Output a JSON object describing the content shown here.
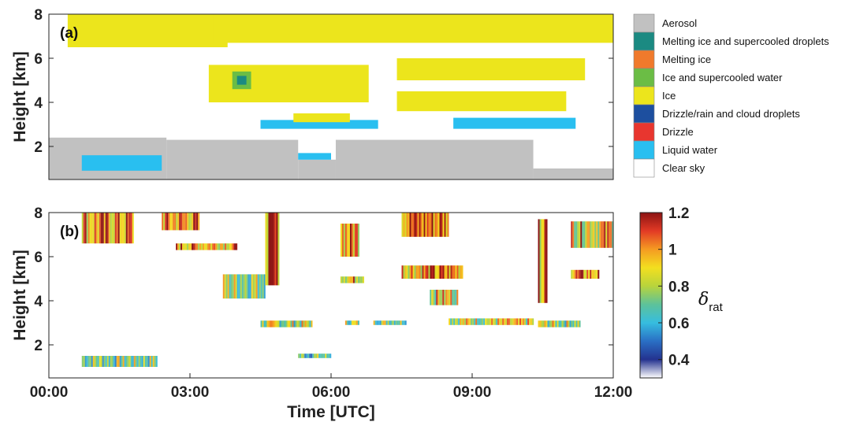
{
  "chart_data": [
    {
      "type": "heatmap",
      "panel_label": "(a)",
      "ylabel": "Height [km]",
      "xlabel": "",
      "xlim": [
        0,
        12
      ],
      "ylim": [
        0.5,
        8
      ],
      "yticks": [
        {
          "value": 2,
          "label": "2"
        },
        {
          "value": 4,
          "label": "4"
        },
        {
          "value": 6,
          "label": "6"
        },
        {
          "value": 8,
          "label": "8"
        }
      ],
      "legend_placement": "right",
      "legend": [
        {
          "label": "Aerosol",
          "color": "#c1c1c1"
        },
        {
          "label": "Melting ice and supercooled droplets",
          "color": "#1b8a82"
        },
        {
          "label": "Melting ice",
          "color": "#f07a2c"
        },
        {
          "label": "Ice and supercooled water",
          "color": "#6bbd45"
        },
        {
          "label": "Ice",
          "color": "#ece51c"
        },
        {
          "label": "Drizzle/rain and cloud droplets",
          "color": "#1d4f9f"
        },
        {
          "label": "Drizzle",
          "color": "#e8362f"
        },
        {
          "label": "Liquid water",
          "color": "#29bff0"
        },
        {
          "label": "Clear sky",
          "color": "#ffffff"
        }
      ],
      "regions": [
        {
          "class": "Aerosol",
          "color": "#c1c1c1",
          "t0": 0.0,
          "t1": 2.5,
          "h0": 0.5,
          "h1": 2.4
        },
        {
          "class": "Aerosol",
          "color": "#c1c1c1",
          "t0": 2.5,
          "t1": 5.3,
          "h0": 0.5,
          "h1": 2.3
        },
        {
          "class": "Aerosol",
          "color": "#c1c1c1",
          "t0": 5.3,
          "t1": 6.1,
          "h0": 0.5,
          "h1": 1.4
        },
        {
          "class": "Aerosol",
          "color": "#c1c1c1",
          "t0": 6.1,
          "t1": 10.3,
          "h0": 0.5,
          "h1": 2.3
        },
        {
          "class": "Aerosol",
          "color": "#c1c1c1",
          "t0": 10.3,
          "t1": 12.0,
          "h0": 0.5,
          "h1": 1.0
        },
        {
          "class": "Aerosol",
          "color": "#c1c1c1",
          "t0": 2.7,
          "t1": 3.4,
          "h0": 6.5,
          "h1": 6.8
        },
        {
          "class": "Liquid water",
          "color": "#29bff0",
          "t0": 0.7,
          "t1": 2.4,
          "h0": 0.9,
          "h1": 1.6
        },
        {
          "class": "Liquid water",
          "color": "#29bff0",
          "t0": 5.3,
          "t1": 6.0,
          "h0": 1.4,
          "h1": 1.7
        },
        {
          "class": "Liquid water",
          "color": "#29bff0",
          "t0": 4.5,
          "t1": 7.0,
          "h0": 2.8,
          "h1": 3.2
        },
        {
          "class": "Liquid water",
          "color": "#29bff0",
          "t0": 8.6,
          "t1": 11.2,
          "h0": 2.8,
          "h1": 3.3
        },
        {
          "class": "Ice",
          "color": "#ece51c",
          "t0": 0.4,
          "t1": 3.8,
          "h0": 6.5,
          "h1": 8.0
        },
        {
          "class": "Ice",
          "color": "#ece51c",
          "t0": 3.5,
          "t1": 12.0,
          "h0": 6.7,
          "h1": 8.0
        },
        {
          "class": "Ice",
          "color": "#ece51c",
          "t0": 3.4,
          "t1": 6.8,
          "h0": 4.0,
          "h1": 5.7
        },
        {
          "class": "Ice",
          "color": "#ece51c",
          "t0": 7.4,
          "t1": 11.4,
          "h0": 5.0,
          "h1": 6.0
        },
        {
          "class": "Ice",
          "color": "#ece51c",
          "t0": 7.4,
          "t1": 11.0,
          "h0": 3.6,
          "h1": 4.5
        },
        {
          "class": "Ice",
          "color": "#ece51c",
          "t0": 5.2,
          "t1": 6.4,
          "h0": 3.1,
          "h1": 3.5
        },
        {
          "class": "Ice and supercooled water",
          "color": "#6bbd45",
          "t0": 3.9,
          "t1": 4.3,
          "h0": 4.6,
          "h1": 5.4
        },
        {
          "class": "Melting ice and supercooled droplets",
          "color": "#1b8a82",
          "t0": 4.0,
          "t1": 4.2,
          "h0": 4.8,
          "h1": 5.2
        }
      ]
    },
    {
      "type": "heatmap",
      "panel_label": "(b)",
      "ylabel": "Height [km]",
      "xlabel": "Time [UTC]",
      "xlim": [
        0,
        12
      ],
      "ylim": [
        0.5,
        8
      ],
      "xticks": [
        {
          "value": 0,
          "label": "00:00"
        },
        {
          "value": 3,
          "label": "03:00"
        },
        {
          "value": 6,
          "label": "06:00"
        },
        {
          "value": 9,
          "label": "09:00"
        },
        {
          "value": 12,
          "label": "12:00"
        }
      ],
      "yticks": [
        {
          "value": 2,
          "label": "2"
        },
        {
          "value": 4,
          "label": "4"
        },
        {
          "value": 6,
          "label": "6"
        },
        {
          "value": 8,
          "label": "8"
        }
      ],
      "colorbar": {
        "label": "δ",
        "label_subscript": "rat",
        "range": [
          0.3,
          1.2
        ],
        "ticks": [
          {
            "value": 0.4,
            "label": "0.4"
          },
          {
            "value": 0.6,
            "label": "0.6"
          },
          {
            "value": 0.8,
            "label": "0.8"
          },
          {
            "value": 1.0,
            "label": "1"
          },
          {
            "value": 1.2,
            "label": "1.2"
          }
        ],
        "colors": [
          "#ffffff",
          "#24328f",
          "#2a6fc4",
          "#36bde0",
          "#5dc29a",
          "#b8d43c",
          "#f3df1f",
          "#f59b22",
          "#e23a25",
          "#8c1313"
        ]
      },
      "regions": [
        {
          "t0": 0.7,
          "t1": 2.3,
          "h0": 1.0,
          "h1": 1.5,
          "level": 0.75
        },
        {
          "t0": 5.3,
          "t1": 6.0,
          "h0": 1.4,
          "h1": 1.6,
          "level": 0.7
        },
        {
          "t0": 4.5,
          "t1": 5.6,
          "h0": 2.8,
          "h1": 3.1,
          "level": 0.8
        },
        {
          "t0": 6.3,
          "t1": 6.6,
          "h0": 2.9,
          "h1": 3.1,
          "level": 0.8
        },
        {
          "t0": 6.9,
          "t1": 7.6,
          "h0": 2.9,
          "h1": 3.1,
          "level": 0.8
        },
        {
          "t0": 8.5,
          "t1": 10.3,
          "h0": 2.9,
          "h1": 3.2,
          "level": 0.85
        },
        {
          "t0": 10.4,
          "t1": 11.3,
          "h0": 2.8,
          "h1": 3.1,
          "level": 0.8
        },
        {
          "t0": 3.7,
          "t1": 4.6,
          "h0": 4.1,
          "h1": 5.2,
          "level": 0.8
        },
        {
          "t0": 0.7,
          "t1": 1.8,
          "h0": 6.6,
          "h1": 8.0,
          "level": 1.0
        },
        {
          "t0": 2.4,
          "t1": 3.2,
          "h0": 7.2,
          "h1": 8.0,
          "level": 1.0
        },
        {
          "t0": 2.7,
          "t1": 4.0,
          "h0": 6.3,
          "h1": 6.6,
          "level": 1.0
        },
        {
          "t0": 4.6,
          "t1": 4.9,
          "h0": 4.7,
          "h1": 8.0,
          "level": 1.05
        },
        {
          "t0": 6.2,
          "t1": 6.6,
          "h0": 6.0,
          "h1": 7.5,
          "level": 1.0
        },
        {
          "t0": 6.2,
          "t1": 6.7,
          "h0": 4.8,
          "h1": 5.1,
          "level": 0.95
        },
        {
          "t0": 7.5,
          "t1": 8.5,
          "h0": 6.9,
          "h1": 8.0,
          "level": 1.05
        },
        {
          "t0": 7.5,
          "t1": 8.8,
          "h0": 5.0,
          "h1": 5.6,
          "level": 1.0
        },
        {
          "t0": 8.1,
          "t1": 8.7,
          "h0": 3.8,
          "h1": 4.5,
          "level": 0.9
        },
        {
          "t0": 11.1,
          "t1": 12.0,
          "h0": 6.4,
          "h1": 7.6,
          "level": 0.95
        },
        {
          "t0": 11.1,
          "t1": 11.7,
          "h0": 5.0,
          "h1": 5.4,
          "level": 1.0
        },
        {
          "t0": 10.4,
          "t1": 10.6,
          "h0": 3.9,
          "h1": 7.7,
          "level": 1.0
        }
      ]
    }
  ]
}
